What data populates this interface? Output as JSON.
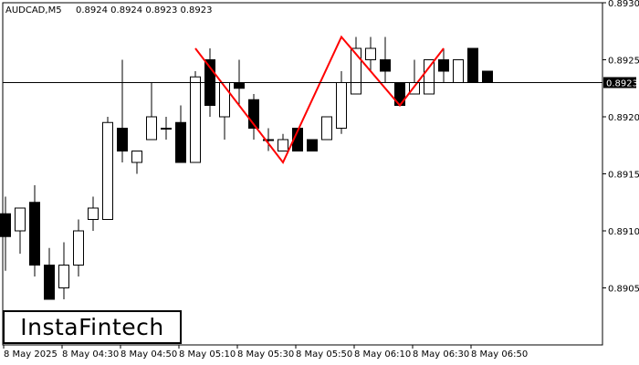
{
  "chart_header": {
    "symbol": "AUDCAD,M5",
    "ohlc": "0.8924 0.8924 0.8923 0.8923"
  },
  "logo": {
    "text": "InstaFintech"
  },
  "colors": {
    "background": "#ffffff",
    "candle": "#000000",
    "pattern": "#ff0000",
    "current_price_bg": "#000000",
    "current_price_text": "#ffffff"
  },
  "chart_data": {
    "type": "candlestick",
    "y_axis": {
      "position": "right",
      "ylim": [
        0.89,
        0.893
      ],
      "ticks": [
        "0.8905",
        "0.8910",
        "0.8915",
        "0.8920",
        "0.8925",
        "0.8930"
      ]
    },
    "x_axis": {
      "tick_labels": [
        "8 May 2025",
        "8 May 04:30",
        "8 May 04:50",
        "8 May 05:10",
        "8 May 05:30",
        "8 May 05:50",
        "8 May 06:10",
        "8 May 06:30",
        "8 May 06:50"
      ],
      "tick_candle_index": [
        0,
        4,
        8,
        12,
        16,
        20,
        24,
        28,
        32
      ]
    },
    "current_price": 0.8923,
    "current_price_label": "0.8923",
    "candles": [
      {
        "o": 0.89115,
        "h": 0.8913,
        "l": 0.89065,
        "c": 0.89095
      },
      {
        "o": 0.891,
        "h": 0.8912,
        "l": 0.8908,
        "c": 0.8912
      },
      {
        "o": 0.89125,
        "h": 0.8914,
        "l": 0.8906,
        "c": 0.8907
      },
      {
        "o": 0.8907,
        "h": 0.89085,
        "l": 0.8904,
        "c": 0.8904
      },
      {
        "o": 0.8905,
        "h": 0.8909,
        "l": 0.8904,
        "c": 0.8907
      },
      {
        "o": 0.8907,
        "h": 0.8911,
        "l": 0.8906,
        "c": 0.891
      },
      {
        "o": 0.8911,
        "h": 0.8913,
        "l": 0.891,
        "c": 0.8912
      },
      {
        "o": 0.8911,
        "h": 0.892,
        "l": 0.8911,
        "c": 0.89195
      },
      {
        "o": 0.8919,
        "h": 0.8925,
        "l": 0.8916,
        "c": 0.8917
      },
      {
        "o": 0.8916,
        "h": 0.8917,
        "l": 0.8915,
        "c": 0.8917
      },
      {
        "o": 0.8918,
        "h": 0.8923,
        "l": 0.8918,
        "c": 0.892
      },
      {
        "o": 0.8919,
        "h": 0.892,
        "l": 0.8918,
        "c": 0.8919
      },
      {
        "o": 0.89195,
        "h": 0.8921,
        "l": 0.8916,
        "c": 0.8916
      },
      {
        "o": 0.8916,
        "h": 0.8924,
        "l": 0.8916,
        "c": 0.89235
      },
      {
        "o": 0.8925,
        "h": 0.8926,
        "l": 0.892,
        "c": 0.8921
      },
      {
        "o": 0.892,
        "h": 0.8923,
        "l": 0.8918,
        "c": 0.8923
      },
      {
        "o": 0.8923,
        "h": 0.8925,
        "l": 0.8921,
        "c": 0.89225
      },
      {
        "o": 0.89215,
        "h": 0.8922,
        "l": 0.8918,
        "c": 0.8919
      },
      {
        "o": 0.8918,
        "h": 0.8919,
        "l": 0.8917,
        "c": 0.8918
      },
      {
        "o": 0.8917,
        "h": 0.89185,
        "l": 0.8917,
        "c": 0.8918
      },
      {
        "o": 0.8919,
        "h": 0.8919,
        "l": 0.8917,
        "c": 0.8917
      },
      {
        "o": 0.8918,
        "h": 0.8918,
        "l": 0.8917,
        "c": 0.8917
      },
      {
        "o": 0.8918,
        "h": 0.892,
        "l": 0.8918,
        "c": 0.892
      },
      {
        "o": 0.8919,
        "h": 0.8924,
        "l": 0.89185,
        "c": 0.8923
      },
      {
        "o": 0.8922,
        "h": 0.8927,
        "l": 0.8922,
        "c": 0.8926
      },
      {
        "o": 0.8925,
        "h": 0.8927,
        "l": 0.8924,
        "c": 0.8926
      },
      {
        "o": 0.8925,
        "h": 0.8927,
        "l": 0.8923,
        "c": 0.8924
      },
      {
        "o": 0.8923,
        "h": 0.8923,
        "l": 0.8921,
        "c": 0.8921
      },
      {
        "o": 0.8922,
        "h": 0.8925,
        "l": 0.8922,
        "c": 0.8923
      },
      {
        "o": 0.8922,
        "h": 0.8925,
        "l": 0.8922,
        "c": 0.8925
      },
      {
        "o": 0.8925,
        "h": 0.8926,
        "l": 0.8923,
        "c": 0.8924
      },
      {
        "o": 0.8923,
        "h": 0.8925,
        "l": 0.8923,
        "c": 0.8925
      },
      {
        "o": 0.8926,
        "h": 0.8926,
        "l": 0.8923,
        "c": 0.8923
      },
      {
        "o": 0.8924,
        "h": 0.8924,
        "l": 0.8923,
        "c": 0.8923
      }
    ],
    "pattern_line": [
      {
        "candle": 13,
        "price": 0.8926
      },
      {
        "candle": 19,
        "price": 0.8916
      },
      {
        "candle": 23,
        "price": 0.8927
      },
      {
        "candle": 27,
        "price": 0.8921
      },
      {
        "candle": 30,
        "price": 0.8926
      }
    ]
  }
}
